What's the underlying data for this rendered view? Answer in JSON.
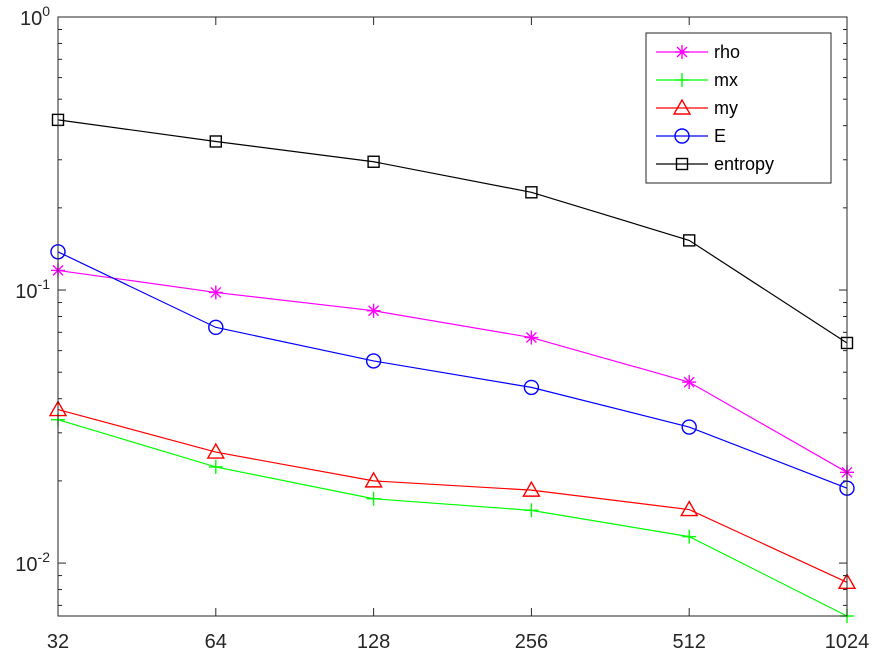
{
  "chart_data": {
    "type": "line",
    "x_scale": "log2",
    "y_scale": "log10",
    "x": [
      32,
      64,
      128,
      256,
      512,
      1024
    ],
    "x_tick_labels": [
      "32",
      "64",
      "128",
      "256",
      "512",
      "1024"
    ],
    "xlim": [
      32,
      1024
    ],
    "ylim": [
      0.0064,
      1
    ],
    "y_ticks": [
      {
        "value": 1,
        "base": "10",
        "exp": "0"
      },
      {
        "value": 0.1,
        "base": "10",
        "exp": "-1"
      },
      {
        "value": 0.01,
        "base": "10",
        "exp": "-2"
      }
    ],
    "grid": false,
    "legend_position": "top-right",
    "series": [
      {
        "name": "rho",
        "color": "#ff00ff",
        "marker": "asterisk",
        "values": [
          0.118,
          0.098,
          0.084,
          0.067,
          0.046,
          0.0215
        ]
      },
      {
        "name": "mx",
        "color": "#00ff00",
        "marker": "plus",
        "values": [
          0.0335,
          0.0225,
          0.0172,
          0.0156,
          0.0125,
          0.0064
        ]
      },
      {
        "name": "my",
        "color": "#ff0000",
        "marker": "triangle",
        "values": [
          0.0365,
          0.0255,
          0.02,
          0.0185,
          0.0157,
          0.0085
        ]
      },
      {
        "name": "E",
        "color": "#0000ff",
        "marker": "circle",
        "values": [
          0.138,
          0.073,
          0.055,
          0.044,
          0.0315,
          0.0188
        ]
      },
      {
        "name": "entropy",
        "color": "#000000",
        "marker": "square",
        "values": [
          0.42,
          0.35,
          0.295,
          0.228,
          0.152,
          0.064
        ]
      }
    ]
  }
}
